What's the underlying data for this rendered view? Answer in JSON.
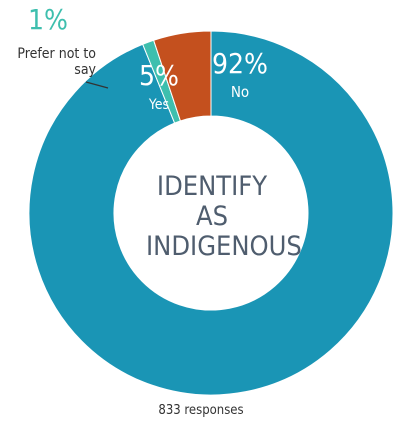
{
  "chart_data": {
    "type": "donut",
    "title": "IDENTIFY AS INDIGENOUS",
    "footnote": "833 responses",
    "categories": [
      "No",
      "Prefer not to say",
      "Yes"
    ],
    "values": [
      92,
      1,
      5
    ],
    "value_labels": [
      "92%",
      "1%",
      "5%"
    ],
    "colors": [
      "#1a95b5",
      "#3ebfae",
      "#c4501e"
    ]
  }
}
